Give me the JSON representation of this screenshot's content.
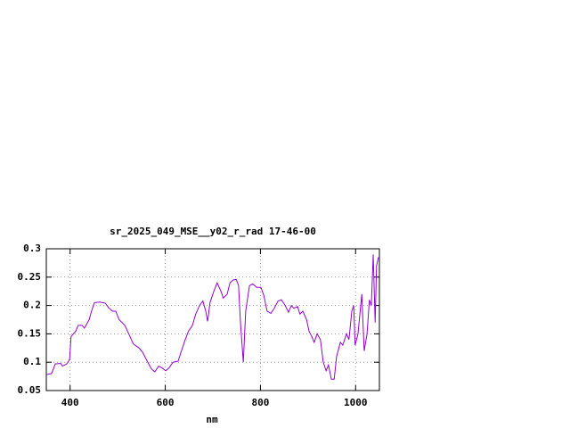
{
  "chart_data": {
    "type": "line",
    "title": "sr_2025_049_MSE__y02_r_rad 17-46-00",
    "x_label": "nm",
    "x": [
      350,
      361,
      369,
      380,
      384,
      393,
      399,
      402,
      412,
      417,
      425,
      430,
      440,
      445,
      451,
      462,
      474,
      481,
      489,
      496,
      503,
      515,
      526,
      533,
      545,
      552,
      560,
      571,
      578,
      586,
      593,
      601,
      608,
      616,
      627,
      634,
      642,
      649,
      657,
      664,
      672,
      679,
      685,
      689,
      694,
      702,
      709,
      717,
      722,
      730,
      736,
      743,
      749,
      754,
      758,
      764,
      769,
      777,
      784,
      792,
      801,
      807,
      814,
      822,
      829,
      837,
      844,
      852,
      859,
      865,
      870,
      878,
      883,
      889,
      897,
      902,
      908,
      913,
      919,
      926,
      932,
      938,
      943,
      949,
      955,
      960,
      968,
      973,
      981,
      986,
      992,
      996,
      999,
      1005,
      1013,
      1018,
      1024,
      1029,
      1033,
      1037,
      1041,
      1044,
      1048
    ],
    "values": [
      0.078,
      0.08,
      0.097,
      0.098,
      0.093,
      0.097,
      0.105,
      0.145,
      0.155,
      0.165,
      0.165,
      0.16,
      0.175,
      0.19,
      0.205,
      0.206,
      0.204,
      0.196,
      0.19,
      0.19,
      0.175,
      0.165,
      0.145,
      0.132,
      0.125,
      0.118,
      0.105,
      0.088,
      0.083,
      0.093,
      0.09,
      0.085,
      0.09,
      0.1,
      0.102,
      0.12,
      0.14,
      0.155,
      0.165,
      0.185,
      0.2,
      0.208,
      0.19,
      0.172,
      0.205,
      0.225,
      0.24,
      0.225,
      0.213,
      0.22,
      0.24,
      0.245,
      0.246,
      0.235,
      0.17,
      0.1,
      0.19,
      0.235,
      0.238,
      0.232,
      0.232,
      0.218,
      0.19,
      0.186,
      0.195,
      0.208,
      0.21,
      0.2,
      0.188,
      0.2,
      0.195,
      0.198,
      0.185,
      0.19,
      0.175,
      0.155,
      0.145,
      0.135,
      0.15,
      0.14,
      0.1,
      0.085,
      0.095,
      0.07,
      0.07,
      0.11,
      0.135,
      0.13,
      0.15,
      0.14,
      0.19,
      0.2,
      0.13,
      0.15,
      0.22,
      0.12,
      0.15,
      0.21,
      0.2,
      0.29,
      0.17,
      0.27,
      0.285
    ],
    "color": "#9400d3",
    "xlim": [
      350,
      1050
    ],
    "xticks": [
      400,
      600,
      800,
      1000
    ],
    "ylim": [
      0.05,
      0.3
    ],
    "yticks": [
      0.05,
      0.1,
      0.15,
      0.2,
      0.25,
      0.3
    ],
    "grid": true
  }
}
